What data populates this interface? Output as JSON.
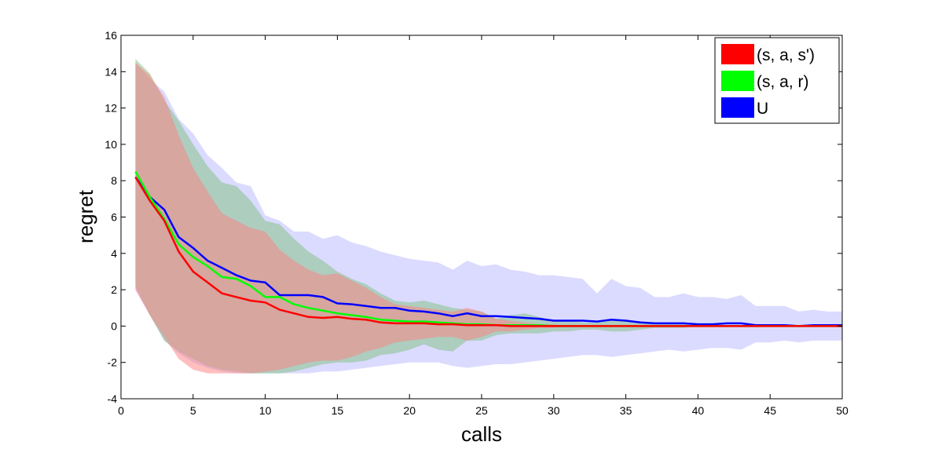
{
  "chart_data": {
    "type": "line",
    "xlabel": "calls",
    "ylabel": "regret",
    "xlim": [
      0,
      50
    ],
    "ylim": [
      -4,
      16
    ],
    "xticks": [
      0,
      5,
      10,
      15,
      20,
      25,
      30,
      35,
      40,
      45,
      50
    ],
    "yticks": [
      -4,
      -2,
      0,
      2,
      4,
      6,
      8,
      10,
      12,
      14,
      16
    ],
    "grid": false,
    "legend_position": "top-right",
    "x": [
      1,
      2,
      3,
      4,
      5,
      6,
      7,
      8,
      9,
      10,
      11,
      12,
      13,
      14,
      15,
      16,
      17,
      18,
      19,
      20,
      21,
      22,
      23,
      24,
      25,
      26,
      27,
      28,
      29,
      30,
      31,
      32,
      33,
      34,
      35,
      36,
      37,
      38,
      39,
      40,
      41,
      42,
      43,
      44,
      45,
      46,
      47,
      48,
      49,
      50
    ],
    "series": [
      {
        "name": "(s, a, s')",
        "color": "#ff0000",
        "band_color": "#ff8080",
        "values": [
          8.2,
          6.9,
          5.8,
          4.1,
          3.0,
          2.4,
          1.8,
          1.6,
          1.4,
          1.3,
          0.9,
          0.7,
          0.5,
          0.45,
          0.5,
          0.4,
          0.35,
          0.2,
          0.15,
          0.15,
          0.15,
          0.1,
          0.1,
          0.05,
          0.05,
          0.05,
          0.0,
          0.0,
          0.0,
          0.0,
          0.0,
          0.0,
          0.0,
          0.0,
          0.0,
          0.0,
          0.0,
          0.0,
          0.0,
          0.0,
          0.0,
          0.0,
          0.0,
          0.0,
          0.0,
          0.0,
          0.0,
          0.0,
          0.0,
          0.0
        ],
        "upper": [
          14.5,
          13.8,
          12.6,
          10.5,
          8.7,
          7.4,
          6.2,
          5.8,
          5.4,
          5.2,
          4.2,
          3.6,
          3.1,
          2.8,
          2.9,
          2.5,
          2.1,
          1.6,
          1.2,
          1.1,
          1.0,
          0.9,
          0.8,
          1.0,
          0.8,
          0.4,
          0.3,
          0.2,
          0.1,
          0.1,
          0.0,
          0.0,
          0.0,
          0.0,
          0.0,
          0.0,
          0.0,
          0.0,
          0.0,
          0.0,
          0.0,
          0.0,
          0.0,
          0.0,
          0.0,
          0.0,
          0.0,
          0.0,
          0.0,
          0.0
        ],
        "lower": [
          2.0,
          0.6,
          -0.6,
          -1.8,
          -2.4,
          -2.6,
          -2.6,
          -2.6,
          -2.6,
          -2.5,
          -2.4,
          -2.2,
          -2.0,
          -1.9,
          -1.9,
          -1.7,
          -1.4,
          -1.2,
          -0.9,
          -0.8,
          -0.7,
          -0.6,
          -0.6,
          -0.8,
          -0.6,
          -0.3,
          -0.3,
          -0.2,
          -0.1,
          -0.1,
          0.0,
          0.0,
          0.0,
          0.0,
          0.0,
          0.0,
          0.0,
          0.0,
          0.0,
          0.0,
          0.0,
          0.0,
          0.0,
          0.0,
          0.0,
          0.0,
          0.0,
          0.0,
          0.0,
          0.0
        ]
      },
      {
        "name": "(s, a, r)",
        "color": "#00ff00",
        "band_color": "#80c080",
        "values": [
          8.5,
          7.1,
          5.9,
          4.5,
          3.8,
          3.3,
          2.7,
          2.6,
          2.2,
          1.6,
          1.6,
          1.2,
          1.0,
          0.85,
          0.7,
          0.6,
          0.5,
          0.35,
          0.3,
          0.25,
          0.25,
          0.2,
          0.15,
          0.1,
          0.1,
          0.05,
          0.05,
          0.05,
          0.05,
          0.0,
          0.0,
          0.0,
          0.0,
          0.0,
          0.0,
          0.0,
          0.0,
          0.0,
          0.0,
          0.0,
          0.0,
          0.0,
          0.0,
          0.0,
          0.0,
          0.0,
          0.0,
          0.0,
          0.0,
          0.0
        ],
        "upper": [
          14.7,
          13.9,
          12.4,
          11.3,
          10.0,
          8.8,
          7.9,
          7.7,
          6.9,
          5.8,
          5.6,
          4.8,
          4.1,
          3.6,
          3.0,
          2.6,
          2.3,
          1.8,
          1.4,
          1.3,
          1.4,
          1.2,
          1.0,
          0.9,
          0.8,
          0.4,
          0.6,
          0.7,
          0.5,
          0.3,
          0.3,
          0.2,
          0.2,
          0.3,
          0.3,
          0.2,
          0.1,
          0.1,
          0.1,
          0.0,
          0.0,
          0.0,
          0.0,
          0.0,
          0.0,
          0.0,
          0.0,
          0.0,
          0.0,
          0.0
        ],
        "lower": [
          2.2,
          0.6,
          -0.8,
          -1.4,
          -1.8,
          -2.2,
          -2.4,
          -2.5,
          -2.6,
          -2.6,
          -2.6,
          -2.5,
          -2.3,
          -2.1,
          -2.0,
          -2.0,
          -1.9,
          -1.6,
          -1.5,
          -1.3,
          -1.0,
          -1.3,
          -1.4,
          -0.8,
          -0.8,
          -0.5,
          -0.4,
          -0.4,
          -0.4,
          -0.3,
          -0.3,
          -0.2,
          -0.2,
          -0.3,
          -0.3,
          -0.2,
          -0.1,
          -0.1,
          -0.1,
          0.0,
          0.0,
          0.0,
          0.0,
          0.0,
          0.0,
          0.0,
          0.0,
          0.0,
          0.0,
          0.0
        ]
      },
      {
        "name": "U",
        "color": "#0000ff",
        "band_color": "#b8b8ff",
        "values": [
          8.2,
          7.1,
          6.4,
          4.9,
          4.3,
          3.6,
          3.2,
          2.8,
          2.5,
          2.4,
          1.7,
          1.7,
          1.7,
          1.6,
          1.25,
          1.2,
          1.1,
          1.0,
          1.0,
          0.85,
          0.8,
          0.7,
          0.55,
          0.7,
          0.55,
          0.55,
          0.5,
          0.45,
          0.4,
          0.3,
          0.3,
          0.3,
          0.25,
          0.35,
          0.3,
          0.2,
          0.15,
          0.15,
          0.15,
          0.1,
          0.1,
          0.15,
          0.15,
          0.05,
          0.05,
          0.05,
          0.0,
          0.05,
          0.05,
          0.05
        ],
        "upper": [
          14.5,
          13.6,
          12.9,
          11.4,
          10.6,
          9.4,
          8.7,
          7.9,
          7.7,
          6.1,
          5.8,
          5.2,
          5.2,
          4.8,
          5.0,
          4.6,
          4.4,
          4.1,
          3.9,
          3.7,
          3.6,
          3.5,
          3.1,
          3.6,
          3.3,
          3.4,
          3.1,
          3.0,
          2.8,
          2.8,
          2.7,
          2.6,
          1.8,
          2.6,
          2.2,
          2.1,
          1.6,
          1.6,
          1.8,
          1.6,
          1.6,
          1.5,
          1.7,
          1.1,
          1.1,
          1.1,
          0.8,
          0.9,
          0.8,
          0.8
        ],
        "lower": [
          2.0,
          0.6,
          -0.8,
          -1.5,
          -2.0,
          -2.3,
          -2.5,
          -2.6,
          -2.6,
          -2.6,
          -2.6,
          -2.6,
          -2.6,
          -2.5,
          -2.5,
          -2.4,
          -2.3,
          -2.2,
          -2.1,
          -2.0,
          -2.0,
          -2.0,
          -2.2,
          -2.3,
          -2.2,
          -2.1,
          -2.1,
          -2.0,
          -1.9,
          -1.8,
          -1.7,
          -1.6,
          -1.6,
          -1.7,
          -1.6,
          -1.5,
          -1.4,
          -1.3,
          -1.4,
          -1.3,
          -1.2,
          -1.2,
          -1.3,
          -0.9,
          -0.9,
          -0.8,
          -0.9,
          -0.8,
          -0.8,
          -0.8
        ]
      }
    ]
  }
}
